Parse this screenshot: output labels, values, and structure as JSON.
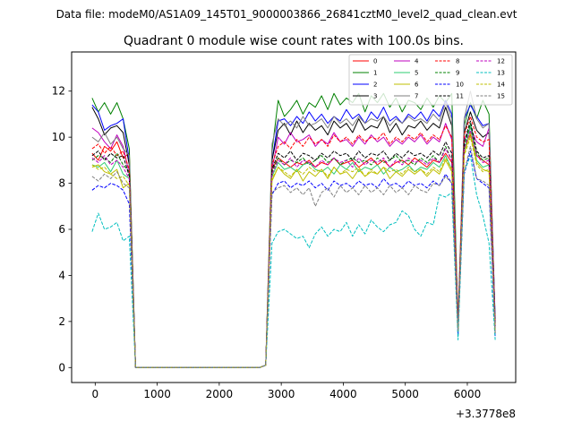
{
  "chart_data": {
    "type": "line",
    "suptitle": "Data file: modeM0/AS1A09_145T01_9000003866_26841cztM0_level2_quad_clean.evt",
    "title": "Quadrant 0 module wise count rates with 100.0s bins.",
    "xlabel": "",
    "ylabel": "",
    "x_offset_label": "+3.3778e8",
    "xlim": [
      -380,
      6780
    ],
    "ylim": [
      -0.65,
      13.7
    ],
    "xticks": [
      0,
      1000,
      2000,
      3000,
      4000,
      5000,
      6000
    ],
    "yticks": [
      0,
      2,
      4,
      6,
      8,
      10,
      12
    ],
    "legend_position": "upper right",
    "x": [
      -50,
      50,
      150,
      250,
      350,
      450,
      550,
      650,
      750,
      850,
      950,
      1050,
      1150,
      1250,
      1350,
      1450,
      1550,
      1650,
      1750,
      1850,
      1950,
      2050,
      2150,
      2250,
      2350,
      2450,
      2550,
      2650,
      2750,
      2850,
      2950,
      3050,
      3150,
      3250,
      3350,
      3450,
      3550,
      3650,
      3750,
      3850,
      3950,
      4050,
      4150,
      4250,
      4350,
      4450,
      4550,
      4650,
      4750,
      4850,
      4950,
      5050,
      5150,
      5250,
      5350,
      5450,
      5550,
      5650,
      5750,
      5850,
      5950,
      6050,
      6150,
      6250,
      6350,
      6450
    ],
    "gap": {
      "start_index": 7,
      "end_index": 27,
      "value": 0
    },
    "series": [
      {
        "name": "0",
        "color": "#ff0000",
        "style": "solid",
        "values": [
          9.3,
          9.0,
          9.6,
          9.4,
          9.8,
          9.1,
          9.3,
          0,
          0,
          0,
          0,
          0,
          0,
          0,
          0,
          0,
          0,
          0,
          0,
          0,
          0,
          0,
          0,
          0,
          0,
          0,
          0,
          0,
          0.1,
          8.6,
          9.1,
          8.9,
          8.7,
          8.9,
          8.8,
          9.0,
          8.7,
          8.9,
          8.8,
          9.1,
          8.8,
          8.9,
          9.0,
          8.7,
          8.9,
          9.1,
          8.8,
          9.0,
          8.7,
          8.9,
          9.0,
          8.8,
          9.1,
          8.9,
          8.7,
          9.0,
          8.9,
          9.3,
          8.9,
          2.0,
          9.5,
          10.1,
          9.2,
          9.0,
          8.8,
          1.6
        ]
      },
      {
        "name": "1",
        "color": "#008000",
        "style": "solid",
        "values": [
          11.7,
          11.1,
          11.5,
          11.0,
          11.5,
          10.8,
          9.5,
          0,
          0,
          0,
          0,
          0,
          0,
          0,
          0,
          0,
          0,
          0,
          0,
          0,
          0,
          0,
          0,
          0,
          0,
          0,
          0,
          0,
          0.1,
          9.4,
          11.6,
          10.9,
          11.2,
          11.6,
          11.0,
          11.5,
          11.3,
          11.8,
          11.2,
          11.9,
          11.4,
          11.7,
          11.5,
          11.9,
          11.1,
          11.8,
          11.5,
          11.9,
          11.3,
          11.7,
          11.1,
          11.6,
          11.5,
          11.2,
          11.7,
          11.3,
          11.8,
          11.5,
          11.9,
          1.9,
          10.5,
          11.5,
          10.8,
          11.6,
          11.0,
          2.0
        ]
      },
      {
        "name": "2",
        "color": "#0000ff",
        "style": "solid",
        "values": [
          11.4,
          11.1,
          10.3,
          10.5,
          10.6,
          10.8,
          9.0,
          0,
          0,
          0,
          0,
          0,
          0,
          0,
          0,
          0,
          0,
          0,
          0,
          0,
          0,
          0,
          0,
          0,
          0,
          0,
          0,
          0,
          0.1,
          9.0,
          10.7,
          10.8,
          10.5,
          10.9,
          10.6,
          11.1,
          10.7,
          11.0,
          10.6,
          10.9,
          10.7,
          11.2,
          10.8,
          11.0,
          10.6,
          11.1,
          10.8,
          11.3,
          10.7,
          10.9,
          10.6,
          11.0,
          10.8,
          11.1,
          10.7,
          11.2,
          10.9,
          11.6,
          11.0,
          1.4,
          10.8,
          11.4,
          10.9,
          10.5,
          10.6,
          2.1
        ]
      },
      {
        "name": "3",
        "color": "#000000",
        "style": "solid",
        "values": [
          11.3,
          10.8,
          10.1,
          10.4,
          10.5,
          10.2,
          8.8,
          0,
          0,
          0,
          0,
          0,
          0,
          0,
          0,
          0,
          0,
          0,
          0,
          0,
          0,
          0,
          0,
          0,
          0,
          0,
          0,
          0,
          0.1,
          9.0,
          10.3,
          10.6,
          10.1,
          10.7,
          10.2,
          10.6,
          10.3,
          10.5,
          10.1,
          10.7,
          10.4,
          10.6,
          10.2,
          10.8,
          10.3,
          10.5,
          10.4,
          10.9,
          10.2,
          10.6,
          10.1,
          10.5,
          10.4,
          10.7,
          10.3,
          10.6,
          10.4,
          11.3,
          10.5,
          1.8,
          10.2,
          11.1,
          10.3,
          10.0,
          10.2,
          1.8
        ]
      },
      {
        "name": "4",
        "color": "#bf00bf",
        "style": "solid",
        "values": [
          10.4,
          10.2,
          9.8,
          9.5,
          10.1,
          9.6,
          8.4,
          0,
          0,
          0,
          0,
          0,
          0,
          0,
          0,
          0,
          0,
          0,
          0,
          0,
          0,
          0,
          0,
          0,
          0,
          0,
          0,
          0,
          0.1,
          8.6,
          10.0,
          9.7,
          10.2,
          9.8,
          9.9,
          10.1,
          9.6,
          9.9,
          9.7,
          10.2,
          9.8,
          9.9,
          9.6,
          10.0,
          9.7,
          10.1,
          9.8,
          10.0,
          9.6,
          9.9,
          9.7,
          10.0,
          9.8,
          10.1,
          9.7,
          10.0,
          9.8,
          10.6,
          9.9,
          1.6,
          9.9,
          10.4,
          9.8,
          9.6,
          10.4,
          1.7
        ]
      },
      {
        "name": "5",
        "color": "#2ecc71",
        "style": "solid",
        "values": [
          8.8,
          8.7,
          8.9,
          8.5,
          9.0,
          8.4,
          8.2,
          0,
          0,
          0,
          0,
          0,
          0,
          0,
          0,
          0,
          0,
          0,
          0,
          0,
          0,
          0,
          0,
          0,
          0,
          0,
          0,
          0,
          0.1,
          8.3,
          8.9,
          8.6,
          8.7,
          8.5,
          8.8,
          8.9,
          8.6,
          8.5,
          8.7,
          8.4,
          8.8,
          8.6,
          8.9,
          8.5,
          8.7,
          8.6,
          8.8,
          8.4,
          8.7,
          8.5,
          8.6,
          8.8,
          8.5,
          8.7,
          8.6,
          8.9,
          8.7,
          9.2,
          8.6,
          1.7,
          9.4,
          10.5,
          9.0,
          8.7,
          8.8,
          1.5
        ]
      },
      {
        "name": "6",
        "color": "#bfbf00",
        "style": "solid",
        "values": [
          8.7,
          8.8,
          8.5,
          8.4,
          8.6,
          7.8,
          8.0,
          0,
          0,
          0,
          0,
          0,
          0,
          0,
          0,
          0,
          0,
          0,
          0,
          0,
          0,
          0,
          0,
          0,
          0,
          0,
          0,
          0,
          0.1,
          8.1,
          8.7,
          8.4,
          8.2,
          8.6,
          8.1,
          8.5,
          8.3,
          8.6,
          8.2,
          8.7,
          8.4,
          8.5,
          8.2,
          8.6,
          8.3,
          8.5,
          8.4,
          8.7,
          8.2,
          8.5,
          8.3,
          8.6,
          8.4,
          8.6,
          8.3,
          8.6,
          8.4,
          9.0,
          8.5,
          1.6,
          9.3,
          10.2,
          8.9,
          8.6,
          8.5,
          1.5
        ]
      },
      {
        "name": "7",
        "color": "#7f7f7f",
        "style": "solid",
        "values": [
          10.0,
          9.8,
          10.2,
          9.7,
          10.0,
          9.5,
          9.2,
          0,
          0,
          0,
          0,
          0,
          0,
          0,
          0,
          0,
          0,
          0,
          0,
          0,
          0,
          0,
          0,
          0,
          0,
          0,
          0,
          0,
          0.1,
          9.7,
          10.8,
          10.5,
          10.7,
          10.4,
          10.9,
          10.5,
          10.6,
          10.8,
          10.4,
          10.9,
          10.6,
          10.8,
          10.5,
          10.9,
          10.6,
          10.8,
          10.7,
          10.9,
          10.5,
          10.8,
          10.6,
          10.9,
          10.7,
          10.8,
          10.6,
          11.0,
          10.7,
          11.5,
          10.8,
          2.0,
          10.8,
          12.0,
          10.8,
          10.4,
          10.6,
          2.0
        ]
      },
      {
        "name": "8",
        "color": "#ff0000",
        "style": "dashed",
        "values": [
          9.5,
          9.7,
          9.3,
          9.6,
          9.2,
          9.4,
          8.6,
          0,
          0,
          0,
          0,
          0,
          0,
          0,
          0,
          0,
          0,
          0,
          0,
          0,
          0,
          0,
          0,
          0,
          0,
          0,
          0,
          0,
          0.1,
          8.8,
          9.6,
          9.8,
          9.5,
          9.9,
          9.6,
          10.0,
          9.7,
          9.9,
          9.6,
          10.1,
          9.8,
          10.0,
          9.7,
          10.1,
          9.8,
          10.0,
          9.9,
          10.2,
          9.7,
          10.0,
          9.8,
          10.1,
          9.9,
          10.2,
          9.8,
          10.1,
          9.9,
          10.5,
          10.0,
          1.9,
          10.1,
          10.9,
          10.0,
          9.8,
          9.9,
          1.9
        ]
      },
      {
        "name": "9",
        "color": "#008000",
        "style": "dashed",
        "values": [
          9.0,
          9.2,
          9.1,
          8.9,
          9.3,
          8.8,
          8.5,
          0,
          0,
          0,
          0,
          0,
          0,
          0,
          0,
          0,
          0,
          0,
          0,
          0,
          0,
          0,
          0,
          0,
          0,
          0,
          0,
          0,
          0.1,
          8.5,
          9.1,
          8.8,
          9.0,
          8.9,
          9.1,
          8.8,
          9.0,
          9.2,
          8.9,
          9.1,
          8.8,
          9.0,
          9.1,
          8.9,
          9.0,
          8.8,
          9.1,
          8.9,
          9.0,
          9.2,
          8.9,
          9.0,
          8.8,
          9.1,
          8.9,
          9.2,
          8.9,
          9.6,
          9.0,
          1.8,
          9.6,
          10.6,
          9.3,
          9.0,
          9.1,
          1.7
        ]
      },
      {
        "name": "10",
        "color": "#0000ff",
        "style": "dashed",
        "values": [
          7.7,
          7.9,
          7.8,
          8.0,
          7.9,
          7.7,
          7.1,
          0,
          0,
          0,
          0,
          0,
          0,
          0,
          0,
          0,
          0,
          0,
          0,
          0,
          0,
          0,
          0,
          0,
          0,
          0,
          0,
          0,
          0.1,
          7.5,
          8.0,
          8.1,
          7.8,
          8.0,
          7.9,
          8.1,
          7.8,
          8.0,
          7.7,
          8.1,
          7.9,
          8.0,
          7.8,
          8.1,
          7.9,
          8.0,
          7.8,
          8.2,
          7.9,
          8.0,
          7.8,
          8.1,
          7.9,
          8.0,
          7.8,
          8.1,
          7.9,
          8.4,
          8.0,
          1.5,
          8.4,
          9.4,
          8.2,
          8.0,
          7.8,
          1.3
        ]
      },
      {
        "name": "11",
        "color": "#000000",
        "style": "dashed",
        "values": [
          9.2,
          9.4,
          9.0,
          9.3,
          9.1,
          9.2,
          8.3,
          0,
          0,
          0,
          0,
          0,
          0,
          0,
          0,
          0,
          0,
          0,
          0,
          0,
          0,
          0,
          0,
          0,
          0,
          0,
          0,
          0,
          0.1,
          8.6,
          9.3,
          9.1,
          9.4,
          9.0,
          9.3,
          9.2,
          9.0,
          9.3,
          9.1,
          9.4,
          9.2,
          9.3,
          9.0,
          9.4,
          9.1,
          9.3,
          9.2,
          9.4,
          9.0,
          9.3,
          9.1,
          9.4,
          9.2,
          9.3,
          9.1,
          9.4,
          9.2,
          9.8,
          9.3,
          1.7,
          9.8,
          10.7,
          9.4,
          9.1,
          9.2,
          1.8
        ]
      },
      {
        "name": "12",
        "color": "#bf00bf",
        "style": "dashed",
        "values": [
          9.1,
          8.9,
          9.2,
          8.8,
          9.0,
          8.7,
          8.2,
          0,
          0,
          0,
          0,
          0,
          0,
          0,
          0,
          0,
          0,
          0,
          0,
          0,
          0,
          0,
          0,
          0,
          0,
          0,
          0,
          0,
          0.1,
          8.4,
          9.0,
          8.8,
          9.1,
          8.7,
          9.0,
          8.9,
          8.7,
          9.0,
          8.8,
          9.1,
          8.9,
          9.0,
          8.7,
          9.1,
          8.8,
          9.0,
          8.9,
          9.1,
          8.7,
          9.0,
          8.8,
          9.1,
          8.9,
          9.0,
          8.8,
          9.1,
          8.9,
          9.5,
          9.0,
          1.7,
          9.5,
          10.3,
          9.2,
          8.9,
          9.0,
          1.7
        ]
      },
      {
        "name": "13",
        "color": "#00bfbf",
        "style": "dashed",
        "values": [
          5.9,
          6.7,
          6.0,
          6.1,
          6.3,
          5.5,
          5.7,
          0,
          0,
          0,
          0,
          0,
          0,
          0,
          0,
          0,
          0,
          0,
          0,
          0,
          0,
          0,
          0,
          0,
          0,
          0,
          0,
          0,
          0.1,
          5.4,
          5.9,
          6.0,
          5.8,
          5.6,
          5.7,
          5.2,
          5.8,
          6.1,
          5.7,
          6.0,
          5.9,
          6.3,
          5.7,
          6.2,
          5.8,
          6.4,
          6.1,
          5.9,
          6.2,
          6.3,
          6.8,
          6.6,
          6.0,
          5.7,
          6.3,
          6.2,
          7.5,
          7.4,
          7.6,
          1.2,
          8.5,
          9.2,
          7.5,
          6.6,
          5.4,
          1.2
        ]
      },
      {
        "name": "14",
        "color": "#bfbf00",
        "style": "dashed",
        "values": [
          8.8,
          8.6,
          8.7,
          8.4,
          8.2,
          8.3,
          7.9,
          0,
          0,
          0,
          0,
          0,
          0,
          0,
          0,
          0,
          0,
          0,
          0,
          0,
          0,
          0,
          0,
          0,
          0,
          0,
          0,
          0,
          0.1,
          8.2,
          8.7,
          8.5,
          8.3,
          8.6,
          8.4,
          8.7,
          8.5,
          8.6,
          8.3,
          8.7,
          8.4,
          8.6,
          8.5,
          8.7,
          8.3,
          8.6,
          8.4,
          8.7,
          8.5,
          8.6,
          8.4,
          8.7,
          8.5,
          8.6,
          8.4,
          8.7,
          8.5,
          9.1,
          8.6,
          1.6,
          9.2,
          10.0,
          8.8,
          8.5,
          8.6,
          1.5
        ]
      },
      {
        "name": "15",
        "color": "#7f7f7f",
        "style": "dashed",
        "values": [
          8.3,
          8.1,
          8.4,
          8.2,
          8.5,
          8.0,
          7.8,
          0,
          0,
          0,
          0,
          0,
          0,
          0,
          0,
          0,
          0,
          0,
          0,
          0,
          0,
          0,
          0,
          0,
          0,
          0,
          0,
          0,
          0.1,
          7.6,
          7.8,
          7.9,
          7.6,
          7.8,
          7.5,
          7.8,
          7.0,
          7.6,
          7.8,
          7.4,
          7.9,
          7.6,
          7.8,
          7.5,
          7.9,
          7.6,
          7.8,
          7.5,
          7.9,
          7.6,
          7.8,
          7.5,
          7.9,
          7.7,
          7.6,
          8.0,
          7.9,
          8.3,
          8.0,
          1.6,
          8.5,
          9.6,
          8.2,
          8.1,
          7.9,
          1.5
        ]
      }
    ]
  }
}
